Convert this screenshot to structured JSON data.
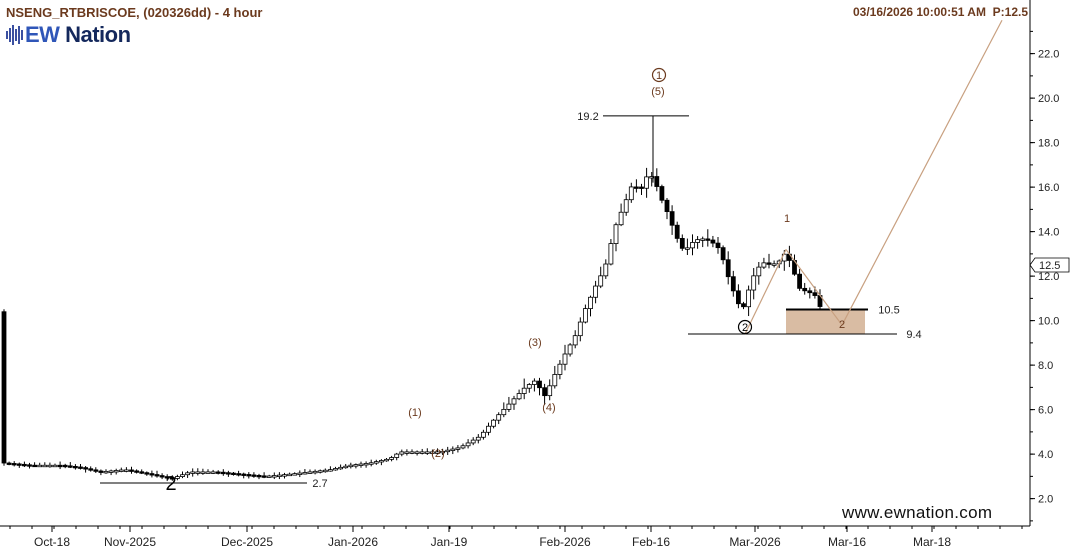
{
  "header": {
    "symbol": "NSENG_RTBRISCOE, (020326dd) - 4 hour",
    "datetime": "03/16/2026 10:00:51 AM",
    "price_label": "P:12.5"
  },
  "logo": {
    "prefix": "EW",
    "suffix": " Nation",
    "icon": "candlestick-bars-icon"
  },
  "website": "www.ewnation.com",
  "colors": {
    "text_brown": "#6b3a1e",
    "candle_up": "#ffffff",
    "candle_down": "#000000",
    "projection_line": "#c8a080",
    "target_box": "#d9bca3",
    "axis": "#000000"
  },
  "chart_data": {
    "type": "candlestick",
    "x_ticks": [
      "Oct-18",
      "Nov-2025",
      "Dec-2025",
      "Jan-2026",
      "Jan-19",
      "Feb-2026",
      "Feb-16",
      "Mar-2026",
      "Mar-16",
      "Mar-18"
    ],
    "y_ticks": [
      2.0,
      4.0,
      6.0,
      8.0,
      10.0,
      12.0,
      14.0,
      16.0,
      18.0,
      20.0,
      22.0
    ],
    "ylim": [
      0.5,
      23.5
    ],
    "grid": false,
    "current_price": 12.5,
    "wave_labels": [
      "2",
      "(1)",
      "(2)",
      "(3)",
      "(4)",
      "(5)",
      "1",
      "2",
      "1",
      "2"
    ],
    "level_labels": [
      "19.2",
      "2.7",
      "10.5",
      "9.4"
    ],
    "levels": [
      19.2,
      2.7,
      10.5,
      9.4
    ],
    "target_zone": [
      9.4,
      10.5
    ]
  }
}
